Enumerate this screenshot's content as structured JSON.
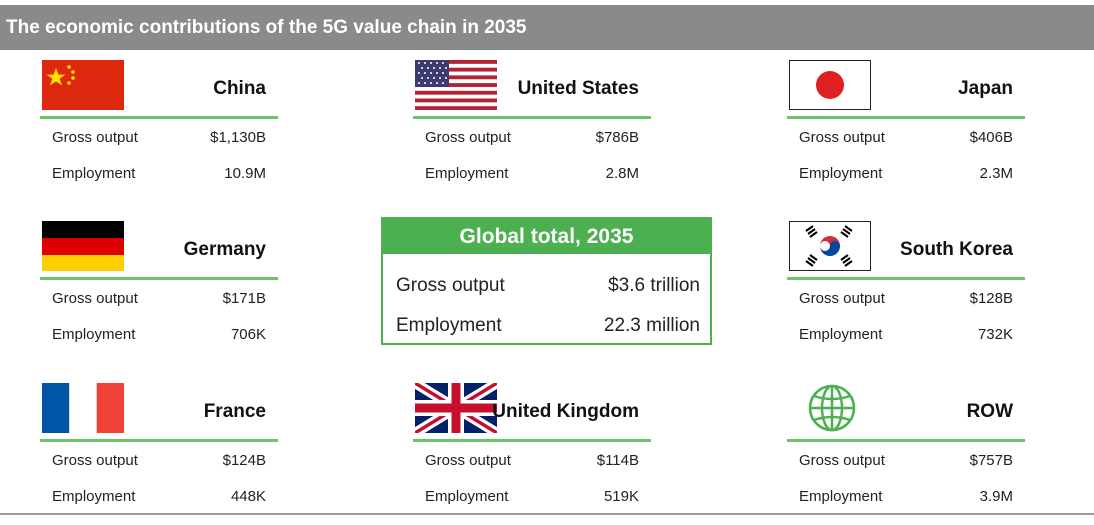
{
  "title": "The economic contributions of the 5G value chain in 2035",
  "countries": [
    {
      "name": "China",
      "flag": "china-flag-icon",
      "gross_output_label": "Gross output",
      "gross_output": "$1,130B",
      "employment_label": "Employment",
      "employment": "10.9M"
    },
    {
      "name": "United States",
      "flag": "us-flag-icon",
      "gross_output_label": "Gross output",
      "gross_output": "$786B",
      "employment_label": "Employment",
      "employment": "2.8M"
    },
    {
      "name": "Japan",
      "flag": "japan-flag-icon",
      "gross_output_label": "Gross output",
      "gross_output": "$406B",
      "employment_label": "Employment",
      "employment": "2.3M"
    },
    {
      "name": "Germany",
      "flag": "germany-flag-icon",
      "gross_output_label": "Gross output",
      "gross_output": "$171B",
      "employment_label": "Employment",
      "employment": "706K"
    },
    {
      "name": "South Korea",
      "flag": "south-korea-flag-icon",
      "gross_output_label": "Gross output",
      "gross_output": "$128B",
      "employment_label": "Employment",
      "employment": "732K"
    },
    {
      "name": "France",
      "flag": "france-flag-icon",
      "gross_output_label": "Gross output",
      "gross_output": "$124B",
      "employment_label": "Employment",
      "employment": "448K"
    },
    {
      "name": "United Kingdom",
      "flag": "uk-flag-icon",
      "gross_output_label": "Gross output",
      "gross_output": "$114B",
      "employment_label": "Employment",
      "employment": "519K"
    },
    {
      "name": "ROW",
      "flag": "globe-icon",
      "gross_output_label": "Gross output",
      "gross_output": "$757B",
      "employment_label": "Employment",
      "employment": "3.9M"
    }
  ],
  "global_total": {
    "heading": "Global total, 2035",
    "gross_output_label": "Gross output",
    "gross_output": "$3.6 trillion",
    "employment_label": "Employment",
    "employment": "22.3 million"
  },
  "colors": {
    "title_bar": "#8a8a8a",
    "accent_green": "#4caf50",
    "rule_green": "#6cc46a"
  }
}
